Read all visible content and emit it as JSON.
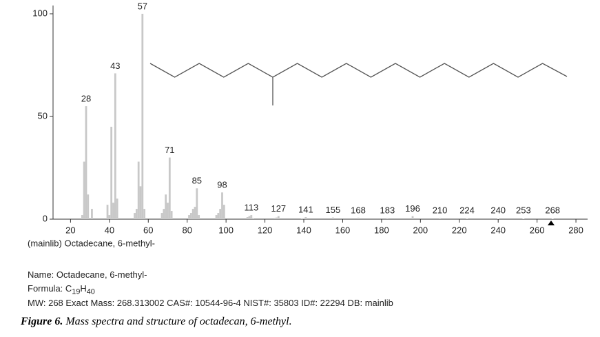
{
  "chart_data": {
    "type": "bar",
    "title": "(mainlib) Octadecane, 6-methyl-",
    "color": "#c8c8c8",
    "xlim": [
      11,
      286
    ],
    "ylim": [
      0,
      100
    ],
    "xticks": [
      20,
      40,
      60,
      80,
      100,
      120,
      140,
      160,
      180,
      200,
      220,
      240,
      260,
      280
    ],
    "yticks": [
      0,
      50,
      100
    ],
    "peaks": {
      "x": [
        28,
        43,
        57,
        71,
        85,
        98,
        113,
        127,
        141,
        155,
        168,
        183,
        196,
        210,
        224,
        240,
        253,
        268
      ],
      "values": [
        55,
        71,
        100,
        30,
        15,
        13,
        2,
        1.5,
        1,
        0.8,
        0.7,
        0.5,
        1.5,
        0.5,
        0.3,
        0.2,
        0.2,
        0.2
      ]
    },
    "minor_peaks": {
      "x": [
        26,
        27,
        29,
        31,
        39,
        40,
        41,
        42,
        44,
        53,
        54,
        55,
        56,
        58,
        67,
        68,
        69,
        70,
        72,
        81,
        82,
        83,
        84,
        86,
        95,
        96,
        97,
        99,
        111,
        112,
        114,
        125,
        126,
        139,
        140
      ],
      "values": [
        2,
        28,
        12,
        5,
        7,
        2,
        45,
        8,
        10,
        3,
        5,
        28,
        16,
        5,
        3,
        5,
        12,
        8,
        4,
        2,
        3,
        5,
        6,
        2,
        2,
        3,
        5,
        7,
        1,
        1.5,
        0.5,
        0.6,
        0.8,
        0.4,
        0.5
      ]
    }
  },
  "info": {
    "name": "Name: Octadecane, 6-methyl-",
    "formula": [
      "Formula: C",
      "19",
      "H",
      "40"
    ],
    "details": "MW: 268 Exact Mass: 268.313002 CAS#: 10544-96-4 NIST#: 35803 ID#: 22294 DB: mainlib"
  },
  "caption": {
    "label": "Figure 6.",
    "text": "Mass spectra and structure of octadecan, 6-methyl."
  }
}
